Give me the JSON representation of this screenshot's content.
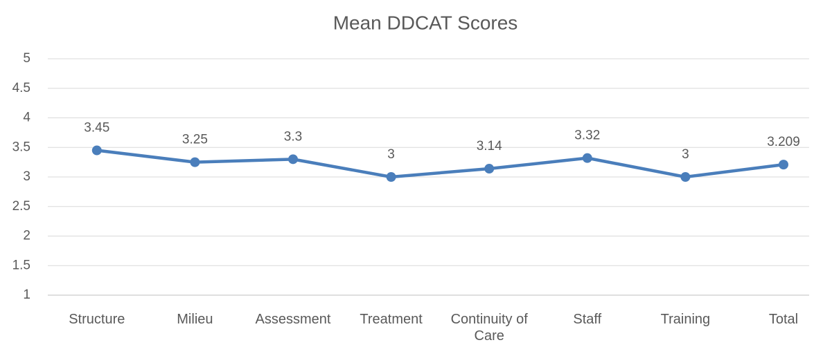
{
  "chart_data": {
    "type": "line",
    "title": "Mean DDCAT Scores",
    "categories": [
      "Structure",
      "Milieu",
      "Assessment",
      "Treatment",
      "Continuity of Care",
      "Staff",
      "Training",
      "Total"
    ],
    "values": [
      3.45,
      3.25,
      3.3,
      3,
      3.14,
      3.32,
      3,
      3.209
    ],
    "color": "#4a7ebb",
    "ylim": [
      1,
      5
    ],
    "yticks": [
      1,
      1.5,
      2,
      2.5,
      3,
      3.5,
      4,
      4.5,
      5
    ],
    "grid": true
  }
}
